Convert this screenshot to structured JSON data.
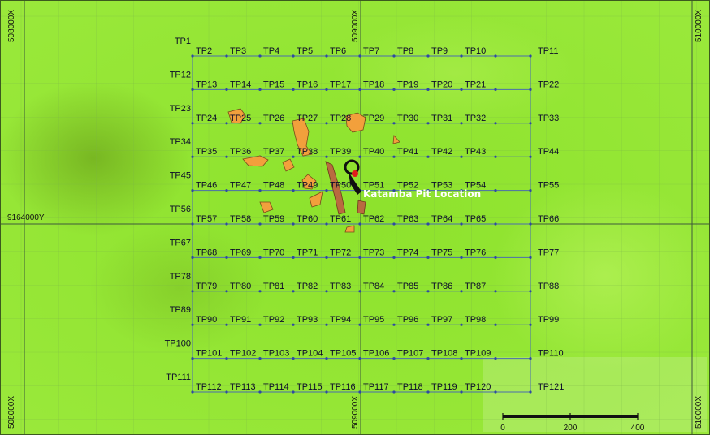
{
  "map": {
    "colors": {
      "background": "#8de22c",
      "background_light": "#a8ec4a",
      "background_dark": "#6fa81c",
      "grid_line": "#6c8fa8",
      "survey_line": "#4a6cae",
      "survey_point": "#2f4aa0",
      "polygon_fill": "#f2a03c",
      "polygon_stroke": "#7a4a1a",
      "pit_polygon": "#b96a40",
      "pit_mark": "#101010",
      "pit_highlight": "#e31c1c",
      "label_text": "#0c0c2a"
    },
    "coordinates": {
      "x_left": "508000X",
      "x_center": "509000X",
      "x_right": "510000X",
      "y_label": "9164000Y"
    },
    "survey_rows": [
      {
        "start": "TP1",
        "points": [
          "TP2",
          "TP3",
          "TP4",
          "TP5",
          "TP6",
          "TP7",
          "TP8",
          "TP9",
          "TP10"
        ],
        "end": "TP11"
      },
      {
        "start": "TP12",
        "points": [
          "TP13",
          "TP14",
          "TP15",
          "TP16",
          "TP17",
          "TP18",
          "TP19",
          "TP20",
          "TP21"
        ],
        "end": "TP22"
      },
      {
        "start": "TP23",
        "points": [
          "TP24",
          "TP25",
          "TP26",
          "TP27",
          "TP28",
          "TP29",
          "TP30",
          "TP31",
          "TP32"
        ],
        "end": "TP33"
      },
      {
        "start": "TP34",
        "points": [
          "TP35",
          "TP36",
          "TP37",
          "TP38",
          "TP39",
          "TP40",
          "TP41",
          "TP42",
          "TP43"
        ],
        "end": "TP44"
      },
      {
        "start": "TP45",
        "points": [
          "TP46",
          "TP47",
          "TP48",
          "TP49",
          "TP50",
          "TP51",
          "TP52",
          "TP53",
          "TP54"
        ],
        "end": "TP55"
      },
      {
        "start": "TP56",
        "points": [
          "TP57",
          "TP58",
          "TP59",
          "TP60",
          "TP61",
          "TP62",
          "TP63",
          "TP64",
          "TP65"
        ],
        "end": "TP66"
      },
      {
        "start": "TP67",
        "points": [
          "TP68",
          "TP69",
          "TP70",
          "TP71",
          "TP72",
          "TP73",
          "TP74",
          "TP75",
          "TP76"
        ],
        "end": "TP77"
      },
      {
        "start": "TP78",
        "points": [
          "TP79",
          "TP80",
          "TP81",
          "TP82",
          "TP83",
          "TP84",
          "TP85",
          "TP86",
          "TP87"
        ],
        "end": "TP88"
      },
      {
        "start": "TP89",
        "points": [
          "TP90",
          "TP91",
          "TP92",
          "TP93",
          "TP94",
          "TP95",
          "TP96",
          "TP97",
          "TP98"
        ],
        "end": "TP99"
      },
      {
        "start": "TP100",
        "points": [
          "TP101",
          "TP102",
          "TP103",
          "TP104",
          "TP105",
          "TP106",
          "TP107",
          "TP108",
          "TP109"
        ],
        "end": "TP110"
      },
      {
        "start": "TP111",
        "points": [
          "TP112",
          "TP113",
          "TP114",
          "TP115",
          "TP116",
          "TP117",
          "TP118",
          "TP119",
          "TP120"
        ],
        "end": "TP121"
      }
    ],
    "pit_label": "Katamba Pit Location",
    "scale_bar": {
      "labels": [
        "0",
        "200",
        "400"
      ]
    }
  }
}
